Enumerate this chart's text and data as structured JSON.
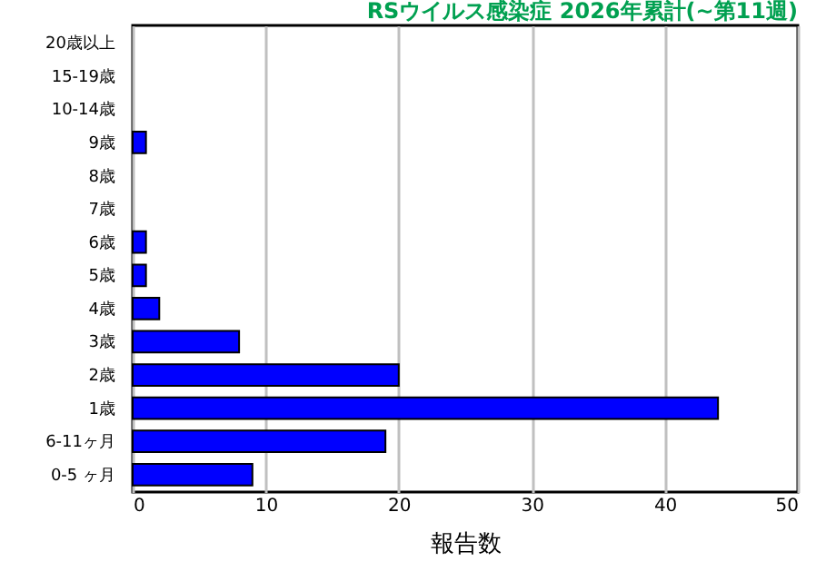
{
  "chart_data": {
    "type": "bar",
    "orientation": "horizontal",
    "title": "RSウイルス感染症 2026年累計(~第11週)",
    "xlabel": "報告数",
    "categories": [
      "20歳以上",
      "15-19歳",
      "10-14歳",
      "9歳",
      "8歳",
      "7歳",
      "6歳",
      "5歳",
      "4歳",
      "3歳",
      "2歳",
      "1歳",
      "6-11ヶ月",
      "0-5 ヶ月"
    ],
    "values": [
      0,
      0,
      0,
      1,
      0,
      0,
      1,
      1,
      2,
      8,
      20,
      44,
      19,
      9
    ],
    "color": "#0000ff",
    "xlim": [
      0,
      50
    ],
    "xticks": [
      0,
      10,
      20,
      30,
      40,
      50
    ],
    "grid": "x"
  }
}
